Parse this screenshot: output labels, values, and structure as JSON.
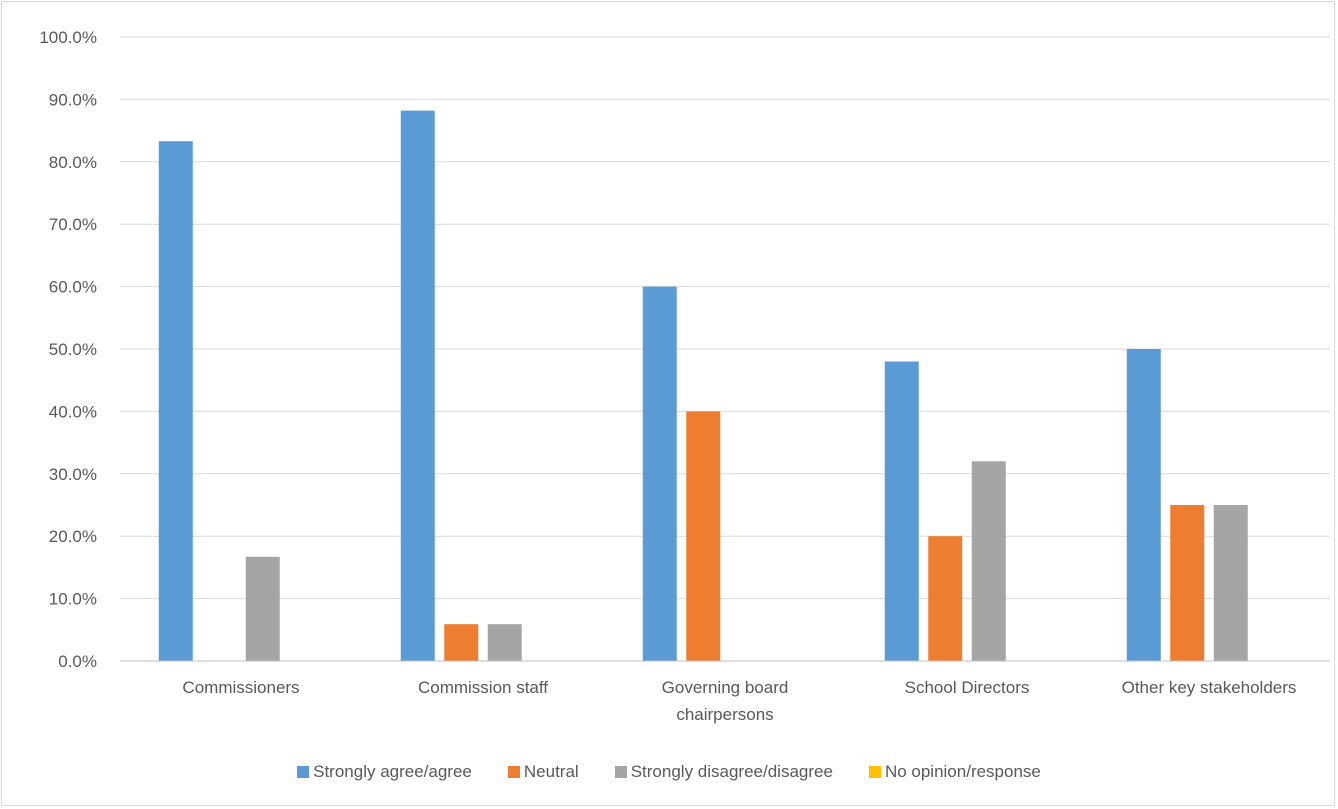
{
  "chart_data": {
    "type": "bar",
    "categories": [
      [
        "Commissioners"
      ],
      [
        "Commission staff"
      ],
      [
        "Governing board",
        "chairpersons"
      ],
      [
        "School Directors"
      ],
      [
        "Other key stakeholders"
      ]
    ],
    "series": [
      {
        "name": "Strongly agree/agree",
        "color": "#5b9bd5",
        "values": [
          83.3,
          88.2,
          60.0,
          48.0,
          50.0
        ]
      },
      {
        "name": "Neutral",
        "color": "#ed7d31",
        "values": [
          0.0,
          5.9,
          40.0,
          20.0,
          25.0
        ]
      },
      {
        "name": "Strongly disagree/disagree",
        "color": "#a5a5a5",
        "values": [
          16.7,
          5.9,
          0.0,
          32.0,
          25.0
        ]
      },
      {
        "name": "No opinion/response",
        "color": "#ffc000",
        "values": [
          0.0,
          0.0,
          0.0,
          0.0,
          0.0
        ]
      }
    ],
    "yticks": [
      "0.0%",
      "10.0%",
      "20.0%",
      "30.0%",
      "40.0%",
      "50.0%",
      "60.0%",
      "70.0%",
      "80.0%",
      "90.0%",
      "100.0%"
    ],
    "ylim": [
      0,
      100
    ],
    "grid": true,
    "legend_position": "bottom",
    "title": "",
    "xlabel": "",
    "ylabel": ""
  }
}
